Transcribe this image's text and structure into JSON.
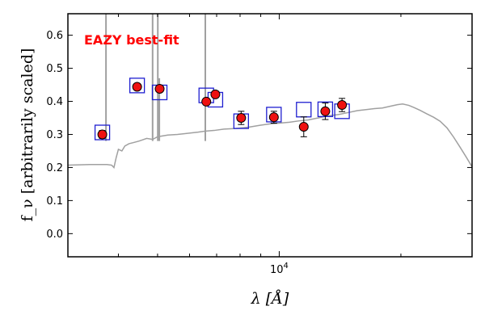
{
  "chart_data": {
    "type": "scatter",
    "title": "",
    "xlabel": "λ [Å]",
    "ylabel": "f_ν [arbitrarily scaled]",
    "xscale": "log",
    "xlim": [
      3000,
      30000
    ],
    "ylim": [
      -0.07,
      0.665
    ],
    "yticks": [
      0.0,
      0.1,
      0.2,
      0.3,
      0.4,
      0.5,
      0.6
    ],
    "ytick_labels": [
      "0.0",
      "0.1",
      "0.2",
      "0.3",
      "0.4",
      "0.5",
      "0.6"
    ],
    "xtick_major": 10000,
    "xtick_base": "10",
    "xtick_exp": "4",
    "annotation": {
      "text": "EAZY best-fit",
      "color": "#ff0000"
    },
    "colors": {
      "model": "#a0a0a0",
      "observed_fill": "#ee1111",
      "observed_edge": "#000000",
      "template_box": "#1f1fd0"
    },
    "template_curve": [
      [
        3000,
        0.207
      ],
      [
        3200,
        0.208
      ],
      [
        3400,
        0.209
      ],
      [
        3600,
        0.209
      ],
      [
        3750,
        0.209
      ],
      [
        3850,
        0.207
      ],
      [
        3900,
        0.2
      ],
      [
        3950,
        0.23
      ],
      [
        4000,
        0.255
      ],
      [
        4080,
        0.25
      ],
      [
        4150,
        0.265
      ],
      [
        4250,
        0.272
      ],
      [
        4350,
        0.275
      ],
      [
        4500,
        0.28
      ],
      [
        4700,
        0.288
      ],
      [
        4862,
        0.285
      ],
      [
        5000,
        0.293
      ],
      [
        5300,
        0.298
      ],
      [
        5600,
        0.3
      ],
      [
        5900,
        0.303
      ],
      [
        6300,
        0.307
      ],
      [
        6563,
        0.31
      ],
      [
        6900,
        0.312
      ],
      [
        7300,
        0.316
      ],
      [
        7800,
        0.318
      ],
      [
        8400,
        0.322
      ],
      [
        9000,
        0.328
      ],
      [
        9500,
        0.332
      ],
      [
        10000,
        0.334
      ],
      [
        10600,
        0.337
      ],
      [
        11200,
        0.341
      ],
      [
        11800,
        0.344
      ],
      [
        12500,
        0.35
      ],
      [
        13200,
        0.356
      ],
      [
        14000,
        0.36
      ],
      [
        14800,
        0.366
      ],
      [
        15600,
        0.372
      ],
      [
        16400,
        0.375
      ],
      [
        17200,
        0.378
      ],
      [
        18000,
        0.38
      ],
      [
        18800,
        0.385
      ],
      [
        19600,
        0.39
      ],
      [
        20200,
        0.392
      ],
      [
        20900,
        0.388
      ],
      [
        21500,
        0.382
      ],
      [
        22300,
        0.373
      ],
      [
        23200,
        0.362
      ],
      [
        24100,
        0.352
      ],
      [
        25000,
        0.34
      ],
      [
        26000,
        0.32
      ],
      [
        27000,
        0.292
      ],
      [
        28000,
        0.262
      ],
      [
        29000,
        0.232
      ],
      [
        30000,
        0.202
      ]
    ],
    "emission_lines": [
      {
        "x": 3727,
        "y_top": 0.665
      },
      {
        "x": 4861,
        "y_top": 0.665
      },
      {
        "x": 5007,
        "y_top": 0.665
      },
      {
        "x": 5050,
        "y_top": 0.47
      },
      {
        "x": 6563,
        "y_top": 0.665
      }
    ],
    "observed": [
      {
        "x": 3650,
        "y": 0.3,
        "err": 0.012
      },
      {
        "x": 4450,
        "y": 0.444,
        "err": 0.008
      },
      {
        "x": 5060,
        "y": 0.438,
        "err": 0.008
      },
      {
        "x": 6600,
        "y": 0.399,
        "err": 0.01
      },
      {
        "x": 6950,
        "y": 0.421,
        "err": 0.01
      },
      {
        "x": 8050,
        "y": 0.35,
        "err": 0.02
      },
      {
        "x": 9700,
        "y": 0.352,
        "err": 0.018
      },
      {
        "x": 11500,
        "y": 0.323,
        "err": 0.03
      },
      {
        "x": 13000,
        "y": 0.37,
        "err": 0.025
      },
      {
        "x": 14300,
        "y": 0.389,
        "err": 0.02
      }
    ],
    "template_boxes": [
      {
        "x": 3650,
        "y": 0.306
      },
      {
        "x": 4450,
        "y": 0.448
      },
      {
        "x": 5060,
        "y": 0.427
      },
      {
        "x": 6600,
        "y": 0.418
      },
      {
        "x": 6950,
        "y": 0.405
      },
      {
        "x": 8050,
        "y": 0.34
      },
      {
        "x": 9700,
        "y": 0.36
      },
      {
        "x": 11500,
        "y": 0.375
      },
      {
        "x": 13000,
        "y": 0.376
      },
      {
        "x": 14300,
        "y": 0.37
      }
    ]
  }
}
